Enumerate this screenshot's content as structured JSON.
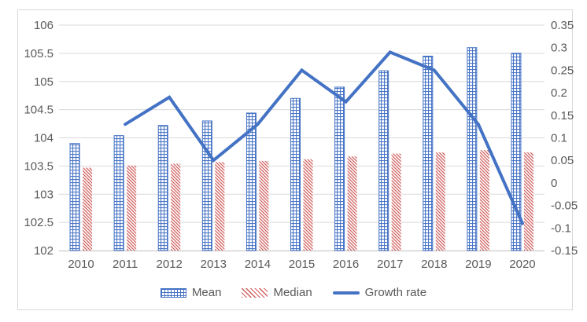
{
  "chart_data": {
    "type": "combo",
    "title": "",
    "categories": [
      "2010",
      "2011",
      "2012",
      "2013",
      "2014",
      "2015",
      "2016",
      "2017",
      "2018",
      "2019",
      "2020"
    ],
    "series": [
      {
        "name": "Mean",
        "type": "bar",
        "axis": "left",
        "pattern": "grid-crosshatch",
        "color": "#4472C4",
        "values": [
          103.9,
          104.04,
          104.22,
          104.3,
          104.44,
          104.7,
          104.9,
          105.19,
          105.45,
          105.6,
          105.5
        ]
      },
      {
        "name": "Median",
        "type": "bar",
        "axis": "left",
        "pattern": "diagonal-hatch",
        "color": "#CF5B5B",
        "values": [
          103.47,
          103.51,
          103.54,
          103.57,
          103.59,
          103.62,
          103.67,
          103.72,
          103.74,
          103.78,
          103.74
        ]
      },
      {
        "name": "Growth rate",
        "type": "line",
        "axis": "right",
        "color": "#4472C4",
        "values": [
          null,
          0.13,
          0.19,
          0.05,
          0.13,
          0.25,
          0.18,
          0.29,
          0.25,
          0.13,
          -0.09
        ]
      }
    ],
    "left_axis": {
      "min": 102,
      "max": 106,
      "tick_step": 0.5,
      "tick_labels": [
        "102",
        "102.5",
        "103",
        "103.5",
        "104",
        "104.5",
        "105",
        "105.5",
        "106"
      ]
    },
    "right_axis": {
      "min": -0.15,
      "max": 0.35,
      "tick_step": 0.05,
      "tick_labels": [
        "-0.15",
        "-0.1",
        "-0.05",
        "0",
        "0.05",
        "0.1",
        "0.15",
        "0.2",
        "0.25",
        "0.3",
        "0.35"
      ]
    },
    "legend": {
      "position": "bottom",
      "entries": [
        "Mean",
        "Median",
        "Growth rate"
      ]
    },
    "grid": "horizontal"
  },
  "colors": {
    "bar_mean": "#4472C4",
    "bar_median": "#CF5B5B",
    "line": "#4472C4",
    "gridline": "#D9D9D9",
    "axis_line": "#BFBFBF",
    "axis_text": "#595959",
    "frame_border": "#D9D9D9",
    "background": "#FFFFFF"
  }
}
